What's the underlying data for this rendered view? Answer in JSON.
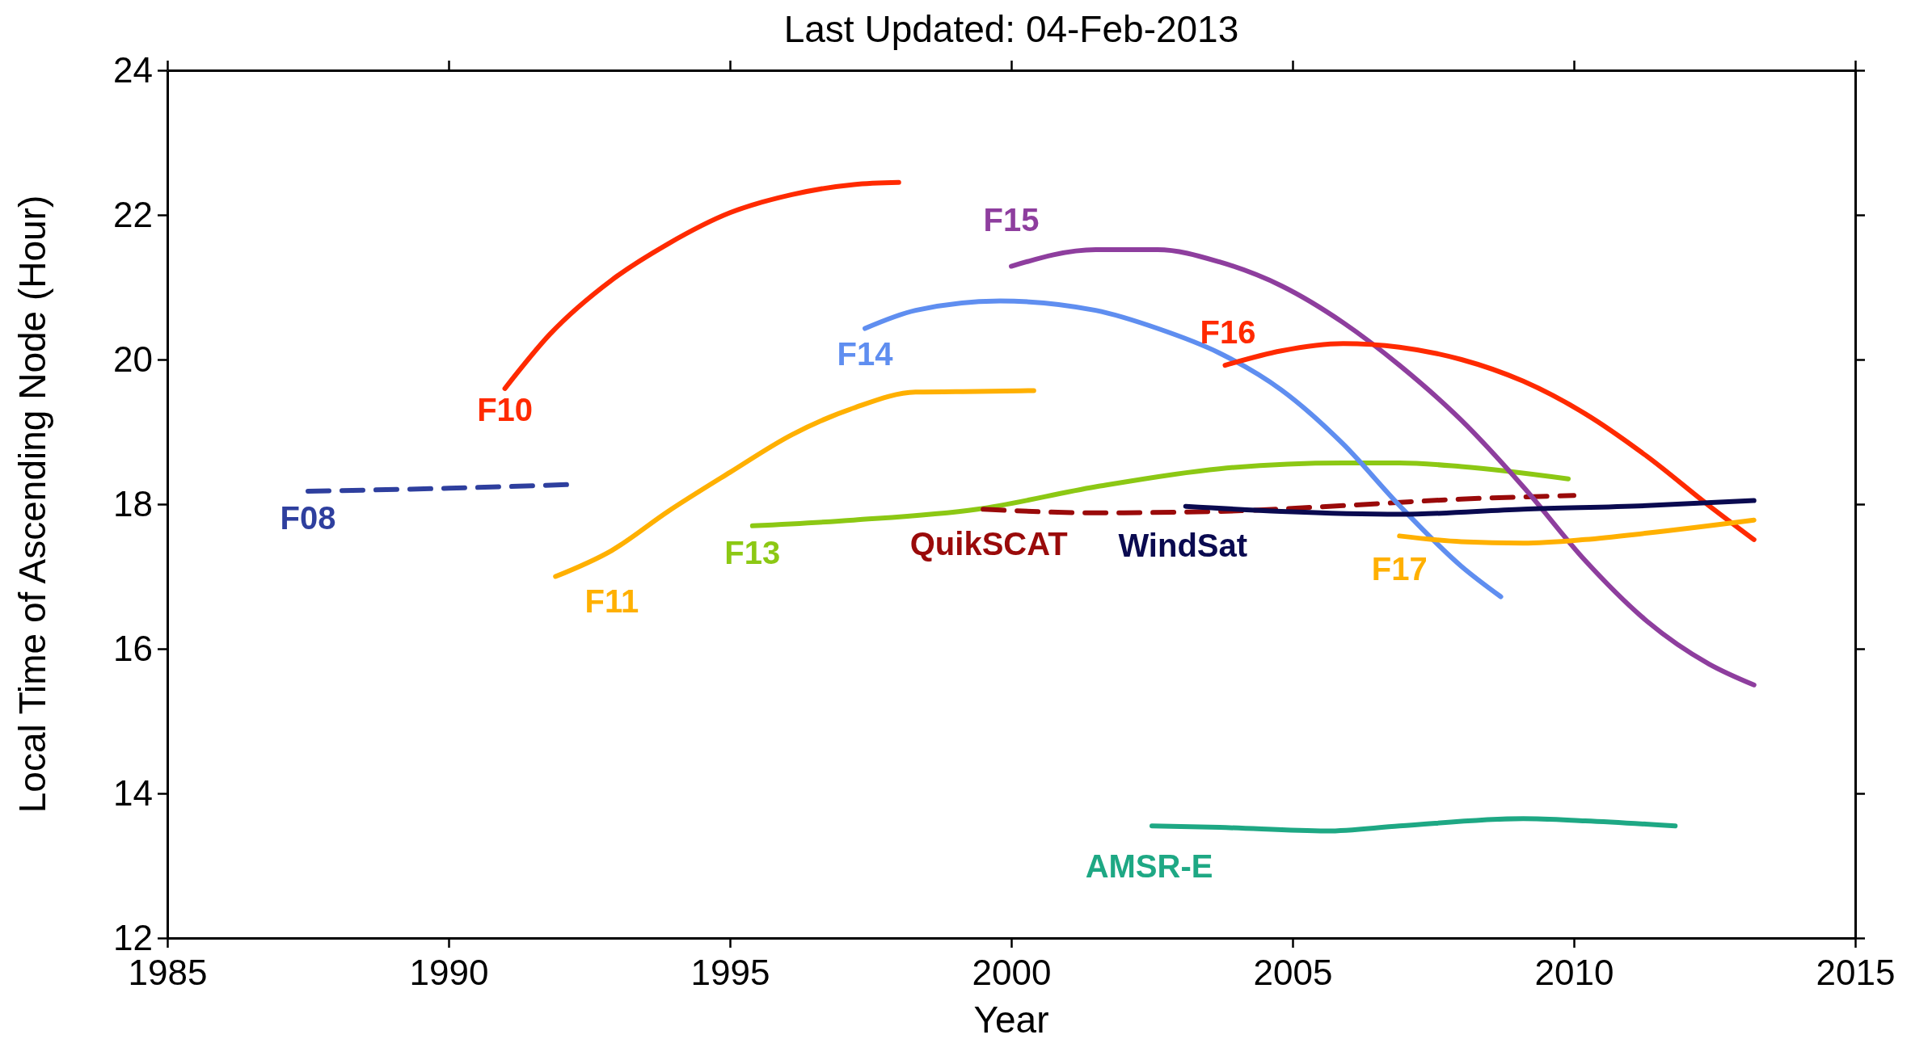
{
  "chart_data": {
    "type": "line",
    "title": "Last Updated: 04-Feb-2013",
    "xlabel": "Year",
    "ylabel": "Local Time of Ascending Node (Hour)",
    "xlim": [
      1985,
      2015
    ],
    "xticks": [
      1985,
      1990,
      1995,
      2000,
      2005,
      2010,
      2015
    ],
    "ylim": [
      12,
      24
    ],
    "yticks": [
      12,
      14,
      16,
      18,
      20,
      22,
      24
    ],
    "grid": false,
    "legend": false,
    "marker": "none",
    "series": [
      {
        "name": "F08",
        "color": "#2e3f9e",
        "line_style": "dashed",
        "x": [
          1987.5,
          1990,
          1992.1
        ],
        "values": [
          18.18,
          18.22,
          18.27
        ]
      },
      {
        "name": "F10",
        "color": "#ff2a00",
        "x": [
          1991.0,
          1991.8,
          1992.9,
          1993.9,
          1995.0,
          1996.1,
          1997.2,
          1998.0
        ],
        "values": [
          19.6,
          20.35,
          21.1,
          21.6,
          22.03,
          22.28,
          22.42,
          22.45
        ]
      },
      {
        "name": "F11",
        "color": "#ffb000",
        "x": [
          1991.9,
          1992.9,
          1993.9,
          1995.0,
          1996.1,
          1997.2,
          1998.3,
          1999.4,
          2000.4
        ],
        "values": [
          17.0,
          17.36,
          17.9,
          18.44,
          18.96,
          19.33,
          19.55,
          19.56,
          19.57
        ]
      },
      {
        "name": "F13",
        "color": "#8cc814",
        "x": [
          1995.4,
          1997.2,
          1999.4,
          2001.5,
          2003.7,
          2005.9,
          2006.9,
          2008.0,
          2009.9
        ],
        "values": [
          17.7,
          17.78,
          17.93,
          18.24,
          18.49,
          18.57,
          18.57,
          18.52,
          18.35
        ]
      },
      {
        "name": "QuikSCAT",
        "color": "#9a0a0a",
        "line_style": "dashed",
        "x": [
          1999.5,
          2001.5,
          2003.7,
          2005.9,
          2008.0,
          2010.0
        ],
        "values": [
          17.93,
          17.88,
          17.9,
          17.98,
          18.07,
          18.12
        ]
      },
      {
        "name": "F14",
        "color": "#5f8ef0",
        "x": [
          1997.4,
          1998.3,
          1999.8,
          2001.5,
          2002.6,
          2003.7,
          2004.8,
          2005.9,
          2006.9,
          2008.0,
          2008.7
        ],
        "values": [
          20.43,
          20.68,
          20.81,
          20.68,
          20.43,
          20.09,
          19.58,
          18.83,
          17.98,
          17.14,
          16.72
        ]
      },
      {
        "name": "F15",
        "color": "#8e3e9e",
        "x": [
          2000.0,
          2001.5,
          2002.6,
          2003.7,
          2004.8,
          2005.9,
          2006.9,
          2008.0,
          2009.1,
          2010.2,
          2011.3,
          2012.4,
          2013.2
        ],
        "values": [
          21.29,
          21.52,
          21.52,
          21.35,
          21.02,
          20.51,
          19.92,
          19.16,
          18.24,
          17.22,
          16.38,
          15.79,
          15.5
        ]
      },
      {
        "name": "F16",
        "color": "#ff2a00",
        "x": [
          2003.8,
          2004.8,
          2005.9,
          2006.9,
          2008.0,
          2009.1,
          2010.2,
          2011.3,
          2012.4,
          2013.2
        ],
        "values": [
          19.92,
          20.12,
          20.22,
          20.17,
          20.0,
          19.7,
          19.25,
          18.66,
          17.98,
          17.51
        ]
      },
      {
        "name": "WindSat",
        "color": "#0a0a50",
        "x": [
          2003.1,
          2004.8,
          2006.9,
          2009.1,
          2011.3,
          2013.2
        ],
        "values": [
          17.97,
          17.9,
          17.86,
          17.93,
          17.98,
          18.05
        ]
      },
      {
        "name": "F17",
        "color": "#ffb000",
        "x": [
          2006.9,
          2008.0,
          2009.1,
          2010.2,
          2011.3,
          2013.2
        ],
        "values": [
          17.56,
          17.48,
          17.46,
          17.51,
          17.6,
          17.78
        ]
      },
      {
        "name": "AMSR-E",
        "color": "#1ea884",
        "x": [
          2002.5,
          2003.7,
          2005.6,
          2006.9,
          2009.1,
          2010.2,
          2011.8
        ],
        "values": [
          13.55,
          13.53,
          13.48,
          13.55,
          13.65,
          13.62,
          13.55
        ]
      }
    ]
  }
}
